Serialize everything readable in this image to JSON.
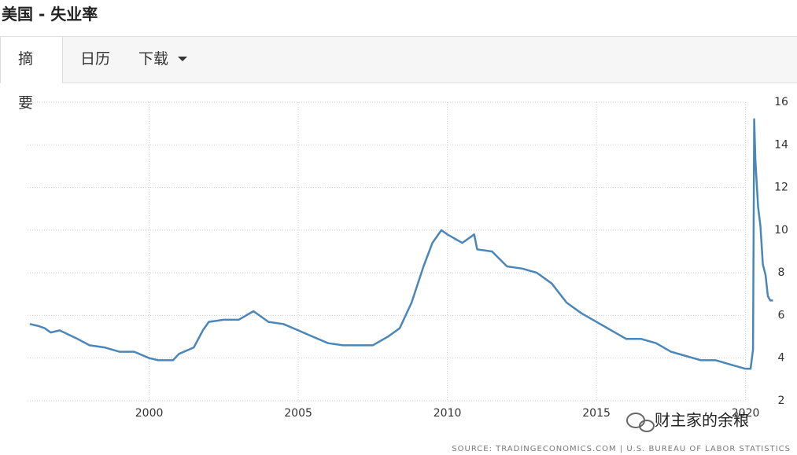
{
  "header": {
    "title": "美国 - 失业率"
  },
  "tabs": [
    {
      "label": "摘要"
    },
    {
      "label": "日历"
    },
    {
      "label": "下载"
    }
  ],
  "watermark": "财主家的余粮",
  "chart_data": {
    "type": "line",
    "source": "SOURCE: TRADINGECONOMICS.COM  |  U.S. BUREAU OF LABOR STATISTICS",
    "x": [
      1996.0,
      1996.3,
      1996.5,
      1996.7,
      1997.0,
      1997.3,
      1997.6,
      1998.0,
      1998.5,
      1999.0,
      1999.5,
      2000.0,
      2000.3,
      2000.8,
      2001.0,
      2001.5,
      2001.8,
      2002.0,
      2002.5,
      2003.0,
      2003.5,
      2003.8,
      2004.0,
      2004.5,
      2005.0,
      2005.5,
      2006.0,
      2006.5,
      2007.0,
      2007.5,
      2008.0,
      2008.4,
      2008.8,
      2009.2,
      2009.5,
      2009.8,
      2010.0,
      2010.5,
      2010.9,
      2011.0,
      2011.5,
      2012.0,
      2012.5,
      2013.0,
      2013.5,
      2014.0,
      2014.5,
      2015.0,
      2015.5,
      2016.0,
      2016.5,
      2017.0,
      2017.5,
      2018.0,
      2018.5,
      2019.0,
      2019.5,
      2020.0,
      2020.17,
      2020.25,
      2020.29,
      2020.33,
      2020.42,
      2020.5,
      2020.58,
      2020.67,
      2020.75,
      2020.83,
      2020.92
    ],
    "series": [
      {
        "color": "#4a86b8",
        "values": [
          5.6,
          5.5,
          5.4,
          5.2,
          5.3,
          5.1,
          4.9,
          4.6,
          4.5,
          4.3,
          4.3,
          4.0,
          3.9,
          3.9,
          4.2,
          4.5,
          5.3,
          5.7,
          5.8,
          5.8,
          6.2,
          5.9,
          5.7,
          5.6,
          5.3,
          5.0,
          4.7,
          4.6,
          4.6,
          4.6,
          5.0,
          5.4,
          6.6,
          8.3,
          9.4,
          10.0,
          9.8,
          9.4,
          9.8,
          9.1,
          9.0,
          8.3,
          8.2,
          8.0,
          7.5,
          6.6,
          6.1,
          5.7,
          5.3,
          4.9,
          4.9,
          4.7,
          4.3,
          4.1,
          3.9,
          3.9,
          3.7,
          3.5,
          3.5,
          4.4,
          15.2,
          13.3,
          11.1,
          10.2,
          8.4,
          7.9,
          6.9,
          6.7,
          6.7
        ]
      }
    ],
    "xlim": [
      1996,
      2020.95
    ],
    "xticks": [
      2000,
      2005,
      2010,
      2015,
      2020
    ],
    "ylim": [
      2,
      16
    ],
    "yticks": [
      2,
      4,
      6,
      8,
      10,
      12,
      14,
      16
    ],
    "grid": true
  }
}
